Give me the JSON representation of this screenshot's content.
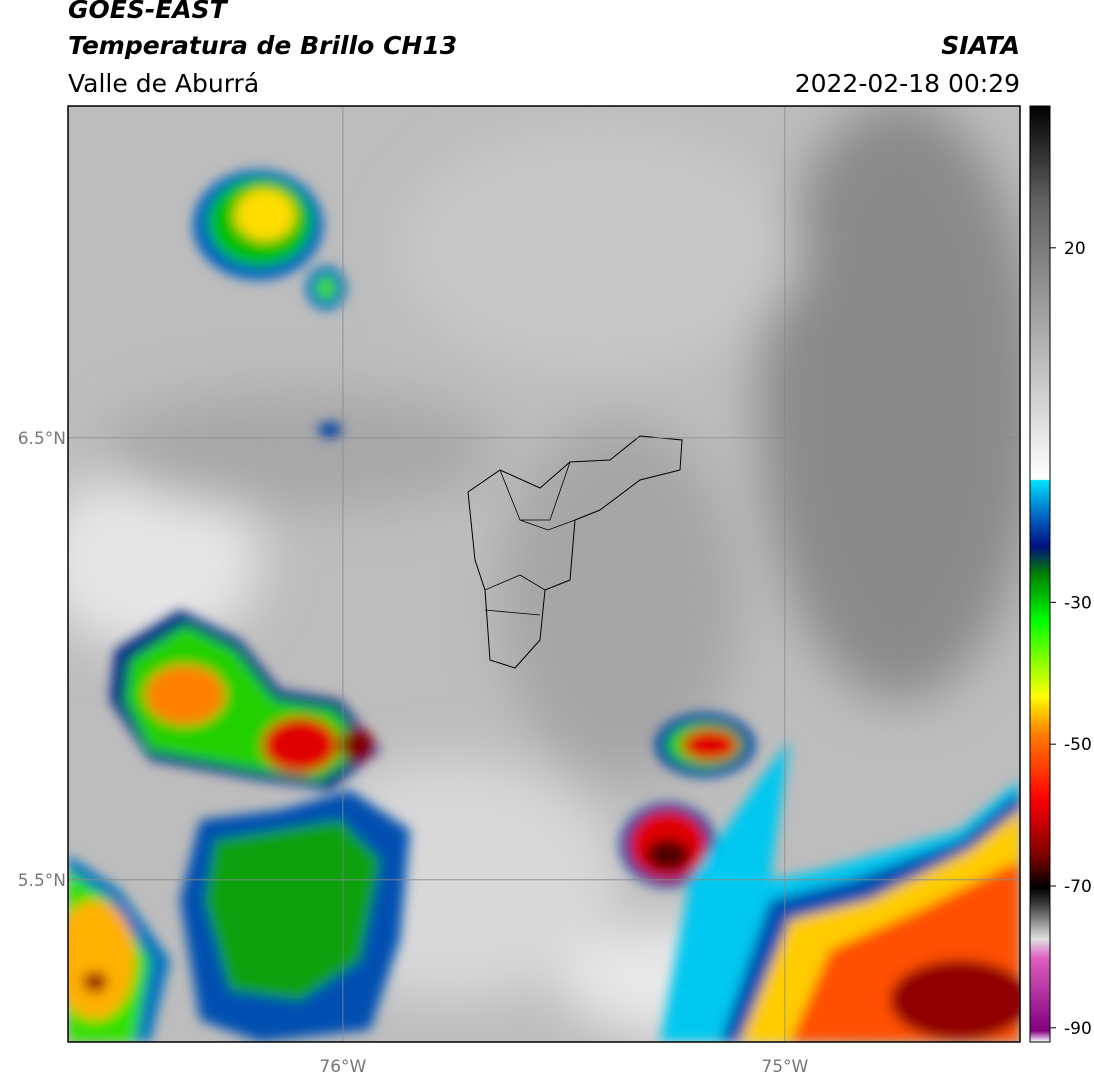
{
  "header": {
    "title": "GOES-EAST",
    "subtitle": "Temperatura de Brillo CH13",
    "region": "Valle de Aburrá",
    "source": "SIATA",
    "datetime": "2022-02-18 00:29"
  },
  "map": {
    "xlim": [
      -76.622,
      -74.468
    ],
    "ylim": [
      5.133,
      7.251
    ],
    "xticks": [
      {
        "value": -76,
        "label": "76°W"
      },
      {
        "value": -75,
        "label": "75°W"
      }
    ],
    "yticks": [
      {
        "value": 6.5,
        "label": "6.5°N"
      },
      {
        "value": 5.5,
        "label": "5.5°N"
      }
    ]
  },
  "colorbar": {
    "lim": [
      -92,
      40
    ],
    "ticks": [
      20,
      -30,
      -50,
      -70,
      -90
    ]
  }
}
